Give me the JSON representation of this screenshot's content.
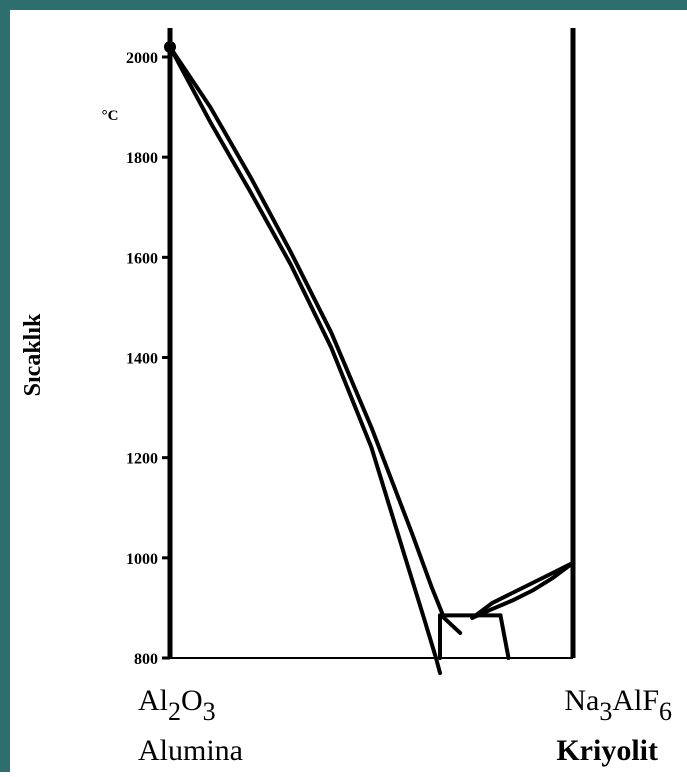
{
  "colors": {
    "frame": "#2f6e6e",
    "background": "#ffffff",
    "ink": "#000000"
  },
  "chart_data": {
    "type": "line",
    "ylabel": "Sıcaklık",
    "y_unit": "°C",
    "ylim": [
      800,
      2000
    ],
    "yticks": [
      "2000",
      "1800",
      "1600",
      "1400",
      "1200",
      "1000",
      "800"
    ],
    "xlim": [
      0,
      100
    ],
    "x_axis_meaning": "Na3AlF6 content, % (0 = Al2O3, 100 = Na3AlF6)",
    "grid": false,
    "left_component": {
      "formula_main": "Al",
      "formula_sub1": "2",
      "formula_mid": "O",
      "formula_sub2": "3",
      "name": "Alumina"
    },
    "right_component": {
      "formula_main": "Na",
      "formula_sub1": "3",
      "formula_mid": "AlF",
      "formula_sub2": "6",
      "name": "Kriyolit"
    },
    "series": [
      {
        "x": [
          0,
          10,
          20,
          30,
          40,
          50,
          60,
          65,
          68,
          72
        ],
        "y": [
          2020,
          1900,
          1760,
          1610,
          1450,
          1260,
          1050,
          940,
          880,
          850
        ]
      },
      {
        "x": [
          0,
          10,
          20,
          30,
          40,
          50,
          58,
          63,
          66,
          67
        ],
        "y": [
          2020,
          1870,
          1730,
          1585,
          1420,
          1220,
          1010,
          880,
          800,
          770
        ]
      },
      {
        "x": [
          75,
          80,
          85,
          90,
          95,
          100
        ],
        "y": [
          880,
          910,
          930,
          950,
          970,
          990
        ]
      },
      {
        "x": [
          75,
          80,
          85,
          90,
          95,
          100
        ],
        "y": [
          880,
          898,
          915,
          935,
          960,
          990
        ]
      },
      {
        "x": [
          67,
          82
        ],
        "y": [
          885,
          885
        ]
      },
      {
        "x": [
          67,
          67
        ],
        "y": [
          885,
          800
        ]
      },
      {
        "x": [
          82,
          84
        ],
        "y": [
          885,
          800
        ]
      }
    ]
  }
}
